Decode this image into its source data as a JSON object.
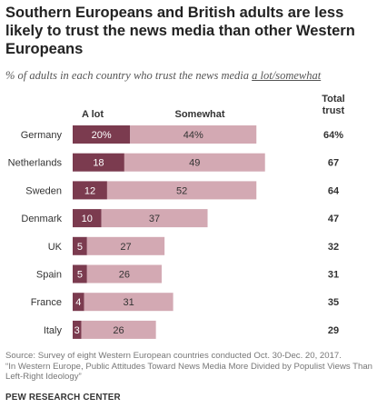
{
  "title": "Southern Europeans and British adults are less likely to trust the news media than other Western Europeans",
  "subtitle": {
    "prefix": "% of adults in each country who trust the news media ",
    "underlined": "a lot/somewhat"
  },
  "chart_data": {
    "type": "bar",
    "stacked": true,
    "orientation": "horizontal",
    "categories": [
      "Germany",
      "Netherlands",
      "Sweden",
      "Denmark",
      "UK",
      "Spain",
      "France",
      "Italy"
    ],
    "series": [
      {
        "name": "A lot",
        "values": [
          20,
          18,
          12,
          10,
          5,
          5,
          4,
          3
        ],
        "labels": [
          "20%",
          "18",
          "12",
          "10",
          "5",
          "5",
          "4",
          "3"
        ],
        "color": "#7b3b4f",
        "label_color": "#ffffff"
      },
      {
        "name": "Somewhat",
        "values": [
          44,
          49,
          52,
          37,
          27,
          26,
          31,
          26
        ],
        "labels": [
          "44%",
          "49",
          "52",
          "37",
          "27",
          "26",
          "31",
          "26"
        ],
        "color": "#d3a9b3",
        "label_color": "#333333"
      }
    ],
    "total": {
      "header": "Total trust",
      "values": [
        64,
        67,
        64,
        47,
        32,
        31,
        35,
        29
      ],
      "labels": [
        "64%",
        "67",
        "64",
        "47",
        "32",
        "31",
        "35",
        "29"
      ]
    },
    "legend_placement": "top, above bars",
    "grid": false
  },
  "footer": {
    "source": "Source: Survey of eight Western European countries conducted Oct. 30-Dec. 20, 2017.",
    "report": "“In Western Europe, Public Attitudes Toward News Media More Divided by Populist Views Than Left-Right Ideology”"
  },
  "brand": "PEW RESEARCH CENTER"
}
